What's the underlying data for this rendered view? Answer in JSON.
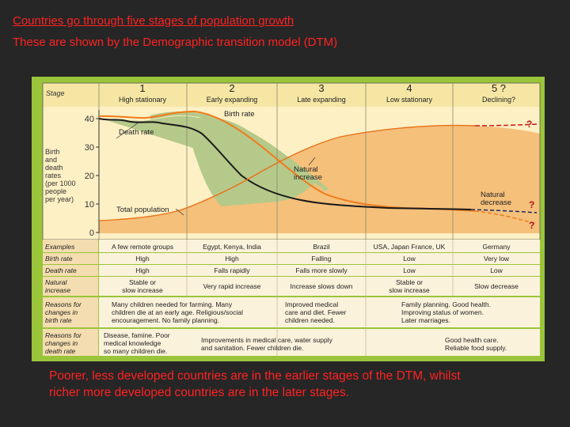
{
  "title_line1": "Countries go through five stages of population growth",
  "title_line2": "These are shown by the Demographic transition model (DTM)",
  "footer_text": "Poorer, less developed countries are in the earlier stages of the DTM, whilst richer more developed countries are in the later stages.",
  "diagram": {
    "stage_label": "Stage",
    "stages": [
      {
        "number": "1",
        "name": "High stationary"
      },
      {
        "number": "2",
        "name": "Early expanding"
      },
      {
        "number": "3",
        "name": "Late expanding"
      },
      {
        "number": "4",
        "name": "Low stationary"
      },
      {
        "number": "5 ?",
        "name": "Declining?"
      }
    ],
    "y_axis_label": [
      "Birth",
      "and",
      "death",
      "rates",
      "(per 1000",
      "people",
      "per year)"
    ],
    "y_ticks": [
      "40",
      "30",
      "20",
      "10",
      "0"
    ],
    "curve_labels": {
      "birth_rate": "Birth rate",
      "death_rate": "Death rate",
      "total_population": "Total population",
      "natural_increase": [
        "Natural",
        "increase"
      ],
      "natural_decrease": [
        "Natural",
        "decrease"
      ],
      "question_top": "?",
      "question_mid": "?",
      "question_bottom": "?"
    },
    "colors": {
      "increase": "#b5c98a",
      "population": "#f5c07a",
      "background": "#fdf0c4",
      "frame": "#9ac53a"
    },
    "rows": [
      {
        "label": [
          "Examples"
        ],
        "cells": [
          [
            "A few remote groups"
          ],
          [
            "Egypt, Kenya, India"
          ],
          [
            "Brazil"
          ],
          [
            "USA, Japan France, UK"
          ],
          [
            "Germany"
          ]
        ]
      },
      {
        "label": [
          "Birth rate"
        ],
        "cells": [
          [
            "High"
          ],
          [
            "High"
          ],
          [
            "Falling"
          ],
          [
            "Low"
          ],
          [
            "Very low"
          ]
        ]
      },
      {
        "label": [
          "Death rate"
        ],
        "cells": [
          [
            "High"
          ],
          [
            "Falls rapidly"
          ],
          [
            "Falls more slowly"
          ],
          [
            "Low"
          ],
          [
            "Low"
          ]
        ]
      },
      {
        "label": [
          "Natural",
          "increase"
        ],
        "cells": [
          [
            "Stable or",
            "slow increase"
          ],
          [
            "Very rapid increase"
          ],
          [
            "Increase slows down"
          ],
          [
            "Stable or",
            "slow increase"
          ],
          [
            "Slow decrease"
          ]
        ]
      }
    ],
    "reasons_birth": {
      "label": [
        "Reasons for",
        "changes in",
        "birth rate"
      ],
      "left": [
        "Many children needed for farming. Many",
        "children die at an early age. Religious/social",
        "encouragement. No family planning."
      ],
      "middle": [
        "Improved medical",
        "care and diet. Fewer",
        "children needed."
      ],
      "right": [
        "Family planning. Good health.",
        "Improving status of women.",
        "Later marriages."
      ]
    },
    "reasons_death": {
      "label": [
        "Reasons for",
        "changes in",
        "death rate"
      ],
      "left": [
        "Disease, famine. Poor",
        "medical knowledge",
        "so many children die."
      ],
      "middle": [
        "Improvements in medical care, water supply",
        "and sanitation. Fewer children die."
      ],
      "right": [
        "Good health care.",
        "Reliable food supply."
      ]
    }
  }
}
